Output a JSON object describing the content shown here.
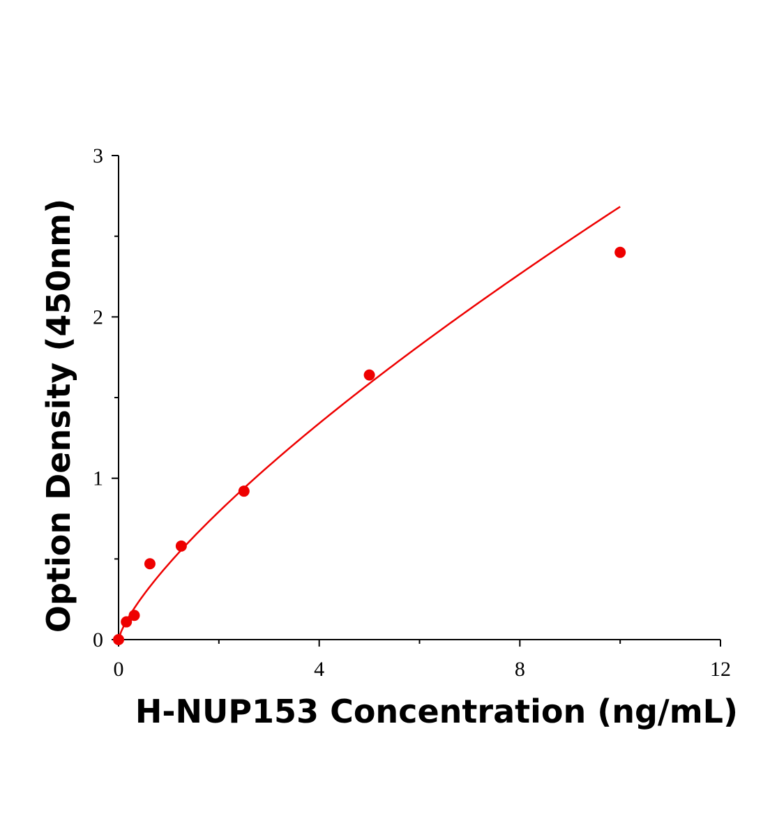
{
  "chart_data": {
    "type": "scatter",
    "xlabel": "H-NUP153 Concentration (ng/mL)",
    "ylabel": "Option Density (450nm)",
    "xlim": [
      0,
      12
    ],
    "ylim": [
      0,
      3
    ],
    "x_major_ticks": [
      0,
      4,
      8,
      12
    ],
    "x_minor_ticks": [
      2,
      6,
      10
    ],
    "x_tick_labels": [
      "0",
      "4",
      "8",
      "12"
    ],
    "y_major_ticks": [
      0,
      1,
      2,
      3
    ],
    "y_minor_ticks": [
      0.5,
      1.5,
      2.5
    ],
    "y_tick_labels": [
      "0",
      "1",
      "2",
      "3"
    ],
    "grid": false,
    "color": "#ee0000",
    "series": [
      {
        "x": [
          0,
          0.156,
          0.313,
          0.625,
          1.25,
          2.5,
          5,
          10
        ],
        "y": [
          0.0,
          0.11,
          0.15,
          0.47,
          0.58,
          0.92,
          1.64,
          2.4
        ],
        "fit": "power"
      }
    ]
  }
}
